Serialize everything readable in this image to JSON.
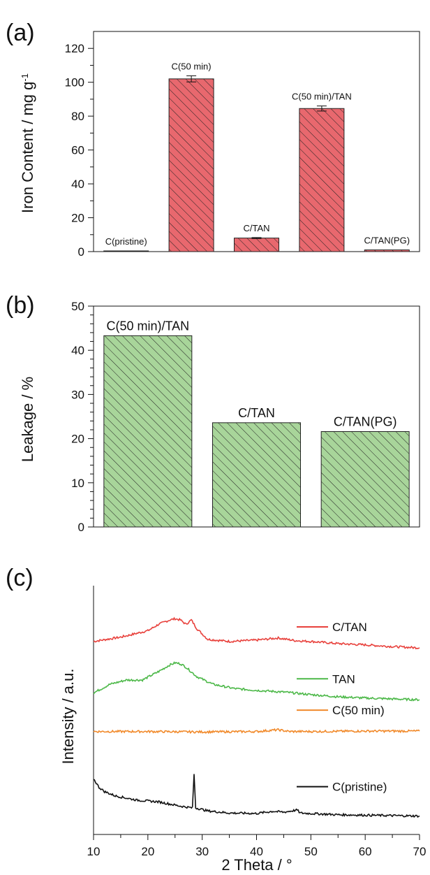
{
  "chart_data": [
    {
      "panel_label": "(a)",
      "type": "bar",
      "ylabel": "Iron Content / mg g",
      "ylabel_sup": "-1",
      "ylim": [
        0,
        130
      ],
      "yticks": [
        0,
        20,
        40,
        60,
        80,
        100,
        120
      ],
      "categories": [
        "C(pristine)",
        "C(50 min)",
        "C/TAN",
        "C(50 min)/TAN",
        "C/TAN(PG)"
      ],
      "values": [
        0.3,
        102,
        8,
        84.5,
        1
      ],
      "errors": [
        0,
        1.8,
        0.3,
        1.5,
        0
      ],
      "bar_color": "#e8686e",
      "hatch": "diagonal"
    },
    {
      "panel_label": "(b)",
      "type": "bar",
      "ylabel": "Leakage / %",
      "ylim": [
        0,
        50
      ],
      "yticks": [
        0,
        10,
        20,
        30,
        40,
        50
      ],
      "categories": [
        "C(50 min)/TAN",
        "C/TAN",
        "C/TAN(PG)"
      ],
      "values": [
        43.3,
        23.6,
        21.6
      ],
      "bar_color": "#a8d59a",
      "hatch": "diagonal"
    },
    {
      "panel_label": "(c)",
      "type": "line",
      "xlabel": "2 Theta / °",
      "ylabel": "Intensity / a.u.",
      "xlim": [
        10,
        70
      ],
      "xticks": [
        10,
        20,
        30,
        40,
        50,
        60,
        70
      ],
      "legend_placement": "right, next to each curve",
      "series": [
        {
          "name": "C/TAN",
          "color": "#e8413c",
          "points": [
            [
              10,
              21
            ],
            [
              15,
              22
            ],
            [
              20,
              23.5
            ],
            [
              22,
              25
            ],
            [
              24,
              26
            ],
            [
              25,
              26.3
            ],
            [
              26,
              26
            ],
            [
              27,
              25
            ],
            [
              28,
              26
            ],
            [
              29,
              24
            ],
            [
              31,
              21.5
            ],
            [
              35,
              21
            ],
            [
              40,
              21.3
            ],
            [
              44,
              21.8
            ],
            [
              47,
              21.2
            ],
            [
              50,
              21
            ],
            [
              55,
              20.5
            ],
            [
              60,
              20.2
            ],
            [
              65,
              19.8
            ],
            [
              70,
              19.5
            ]
          ]
        },
        {
          "name": "TAN",
          "color": "#4cb848",
          "points": [
            [
              10,
              9
            ],
            [
              13,
              11
            ],
            [
              16,
              12
            ],
            [
              19,
              12
            ],
            [
              22,
              14
            ],
            [
              24,
              15.5
            ],
            [
              25,
              16
            ],
            [
              26,
              15.8
            ],
            [
              27,
              15
            ],
            [
              29,
              12.8
            ],
            [
              32,
              11
            ],
            [
              36,
              10
            ],
            [
              40,
              9.6
            ],
            [
              45,
              9.2
            ],
            [
              50,
              8.6
            ],
            [
              55,
              8.1
            ],
            [
              60,
              7.8
            ],
            [
              65,
              7.6
            ],
            [
              70,
              7.4
            ]
          ]
        },
        {
          "name": "C(50 min)",
          "color": "#f18a2b",
          "points": [
            [
              10,
              0
            ],
            [
              20,
              0
            ],
            [
              30,
              -0.1
            ],
            [
              40,
              0
            ],
            [
              44,
              0.4
            ],
            [
              46,
              0
            ],
            [
              50,
              0
            ],
            [
              60,
              0.1
            ],
            [
              70,
              0.1
            ]
          ]
        },
        {
          "name": "C(pristine)",
          "color": "#111111",
          "points": [
            [
              10,
              -11
            ],
            [
              11,
              -13
            ],
            [
              12,
              -14
            ],
            [
              14,
              -15
            ],
            [
              18,
              -16
            ],
            [
              22,
              -16.4
            ],
            [
              26,
              -17.4
            ],
            [
              28.2,
              -17.8
            ],
            [
              28.5,
              -10
            ],
            [
              28.8,
              -17.8
            ],
            [
              31,
              -18.5
            ],
            [
              35,
              -19
            ],
            [
              40,
              -19.1
            ],
            [
              43,
              -18.6
            ],
            [
              45,
              -18.8
            ],
            [
              47.5,
              -18.3
            ],
            [
              48,
              -19
            ],
            [
              55,
              -19.4
            ],
            [
              60,
              -19.5
            ],
            [
              65,
              -19.6
            ],
            [
              70,
              -19.7
            ]
          ]
        }
      ]
    }
  ]
}
